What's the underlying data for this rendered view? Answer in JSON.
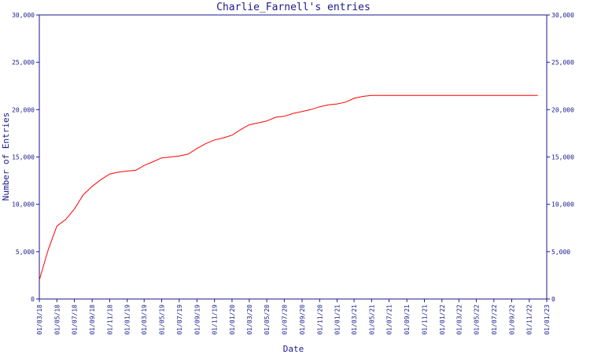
{
  "chart_data": {
    "type": "line",
    "title": "Charlie_Farnell's entries",
    "xlabel": "Date",
    "ylabel": "Number of Entries",
    "ylim": [
      0,
      30000
    ],
    "y_ticks": [
      "0",
      "5,000",
      "10,000",
      "15,000",
      "20,000",
      "25,000",
      "30,000"
    ],
    "y_tick_values": [
      0,
      5000,
      10000,
      15000,
      20000,
      25000,
      30000
    ],
    "right_axis": true,
    "x_ticks": [
      "01/03/18",
      "01/05/18",
      "01/07/18",
      "01/09/18",
      "01/11/18",
      "01/01/19",
      "01/03/19",
      "01/05/19",
      "01/07/19",
      "01/09/19",
      "01/11/19",
      "01/01/20",
      "01/03/20",
      "01/05/20",
      "01/07/20",
      "01/09/20",
      "01/11/20",
      "01/01/21",
      "01/03/21",
      "01/05/21",
      "01/07/21",
      "01/09/21",
      "01/11/21",
      "01/01/22",
      "01/03/22",
      "01/05/22",
      "01/07/22",
      "01/09/22",
      "01/11/22",
      "01/01/23"
    ],
    "x_tick_dates": [
      "2018-03-01",
      "2018-05-01",
      "2018-07-01",
      "2018-09-01",
      "2018-11-01",
      "2019-01-01",
      "2019-03-01",
      "2019-05-01",
      "2019-07-01",
      "2019-09-01",
      "2019-11-01",
      "2020-01-01",
      "2020-03-01",
      "2020-05-01",
      "2020-07-01",
      "2020-09-01",
      "2020-11-01",
      "2021-01-01",
      "2021-03-01",
      "2021-05-01",
      "2021-07-01",
      "2021-09-01",
      "2021-11-01",
      "2022-01-01",
      "2022-03-01",
      "2022-05-01",
      "2022-07-01",
      "2022-09-01",
      "2022-11-01",
      "2023-01-01"
    ],
    "xlim": [
      "2018-03-01",
      "2023-01-01"
    ],
    "grid": false,
    "colors": {
      "line": "#ff0000",
      "axes": "#1a1a8c",
      "text": "#1a1a8c",
      "background": "#ffffff"
    },
    "series": [
      {
        "x": [
          "2018-03-01",
          "2018-04-01",
          "2018-05-01",
          "2018-06-01",
          "2018-07-01",
          "2018-08-01",
          "2018-09-01",
          "2018-10-01",
          "2018-11-01",
          "2018-12-01",
          "2019-01-01",
          "2019-02-01",
          "2019-03-01",
          "2019-04-01",
          "2019-05-01",
          "2019-06-01",
          "2019-07-01",
          "2019-08-01",
          "2019-09-01",
          "2019-10-01",
          "2019-11-01",
          "2019-12-01",
          "2020-01-01",
          "2020-02-01",
          "2020-03-01",
          "2020-04-01",
          "2020-05-01",
          "2020-06-01",
          "2020-07-01",
          "2020-08-01",
          "2020-09-01",
          "2020-10-01",
          "2020-11-01",
          "2020-12-01",
          "2021-01-01",
          "2021-02-01",
          "2021-03-01",
          "2021-04-01",
          "2021-05-01",
          "2021-07-01",
          "2021-09-01",
          "2021-11-01",
          "2022-01-01",
          "2022-03-01",
          "2022-05-01",
          "2022-07-01",
          "2022-09-01",
          "2022-12-01"
        ],
        "y": [
          2000,
          5200,
          7700,
          8400,
          9500,
          11000,
          11900,
          12600,
          13200,
          13400,
          13500,
          13600,
          14100,
          14500,
          14900,
          15000,
          15100,
          15300,
          15900,
          16400,
          16800,
          17000,
          17300,
          17900,
          18400,
          18600,
          18800,
          19200,
          19300,
          19600,
          19800,
          20000,
          20300,
          20500,
          20600,
          20800,
          21200,
          21400,
          21500,
          21500,
          21500,
          21500,
          21500,
          21500,
          21500,
          21500,
          21500,
          21500
        ]
      }
    ]
  }
}
